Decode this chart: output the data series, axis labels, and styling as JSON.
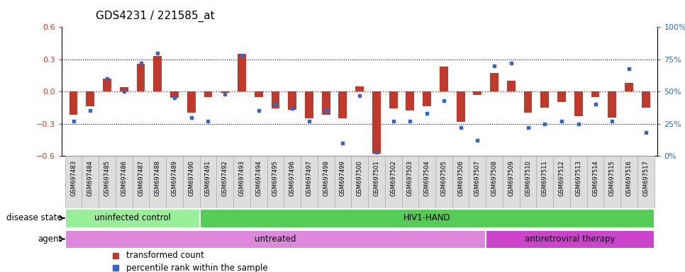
{
  "title": "GDS4231 / 221585_at",
  "samples": [
    "GSM697483",
    "GSM697484",
    "GSM697485",
    "GSM697486",
    "GSM697487",
    "GSM697488",
    "GSM697489",
    "GSM697490",
    "GSM697491",
    "GSM697492",
    "GSM697493",
    "GSM697494",
    "GSM697495",
    "GSM697496",
    "GSM697497",
    "GSM697498",
    "GSM697499",
    "GSM697500",
    "GSM697501",
    "GSM697502",
    "GSM697503",
    "GSM697504",
    "GSM697505",
    "GSM697506",
    "GSM697507",
    "GSM697508",
    "GSM697509",
    "GSM697510",
    "GSM697511",
    "GSM697512",
    "GSM697513",
    "GSM697514",
    "GSM697515",
    "GSM697516",
    "GSM697517"
  ],
  "bar_values": [
    -0.22,
    -0.14,
    0.12,
    0.04,
    0.26,
    0.33,
    -0.06,
    -0.2,
    -0.05,
    -0.01,
    0.35,
    -0.05,
    -0.16,
    -0.17,
    -0.25,
    -0.22,
    -0.25,
    0.05,
    -0.58,
    -0.16,
    -0.18,
    -0.14,
    0.23,
    -0.28,
    -0.03,
    0.17,
    0.1,
    -0.2,
    -0.15,
    -0.1,
    -0.23,
    -0.05,
    -0.24,
    0.08,
    -0.15
  ],
  "percentile_values": [
    27,
    35,
    60,
    50,
    72,
    80,
    45,
    30,
    27,
    48,
    78,
    35,
    40,
    37,
    27,
    35,
    10,
    47,
    3,
    27,
    27,
    33,
    43,
    22,
    12,
    70,
    72,
    22,
    25,
    27,
    25,
    40,
    27,
    68,
    18
  ],
  "ylim_left": [
    -0.6,
    0.6
  ],
  "ylim_right": [
    0,
    100
  ],
  "yticks_left": [
    -0.6,
    -0.3,
    0.0,
    0.3,
    0.6
  ],
  "yticks_right": [
    0,
    25,
    50,
    75,
    100
  ],
  "ytick_labels_right": [
    "0%",
    "25%",
    "50%",
    "75%",
    "100%"
  ],
  "hlines": [
    -0.3,
    0.0,
    0.3
  ],
  "bar_color": "#c0392b",
  "scatter_color": "#3366cc",
  "bar_width": 0.5,
  "disease_state_groups": [
    {
      "label": "uninfected control",
      "start": 0,
      "end": 7,
      "color": "#99ee99"
    },
    {
      "label": "HIV1-HAND",
      "start": 8,
      "end": 34,
      "color": "#55cc55"
    }
  ],
  "agent_groups": [
    {
      "label": "untreated",
      "start": 0,
      "end": 24,
      "color": "#dd88dd"
    },
    {
      "label": "antiretroviral therapy",
      "start": 25,
      "end": 34,
      "color": "#cc44cc"
    }
  ],
  "legend_items": [
    {
      "label": "transformed count",
      "color": "#c0392b"
    },
    {
      "label": "percentile rank within the sample",
      "color": "#3366cc"
    }
  ],
  "disease_label": "disease state",
  "agent_label": "agent",
  "xtick_bg": "#dddddd",
  "xtick_border": "#aaaaaa"
}
